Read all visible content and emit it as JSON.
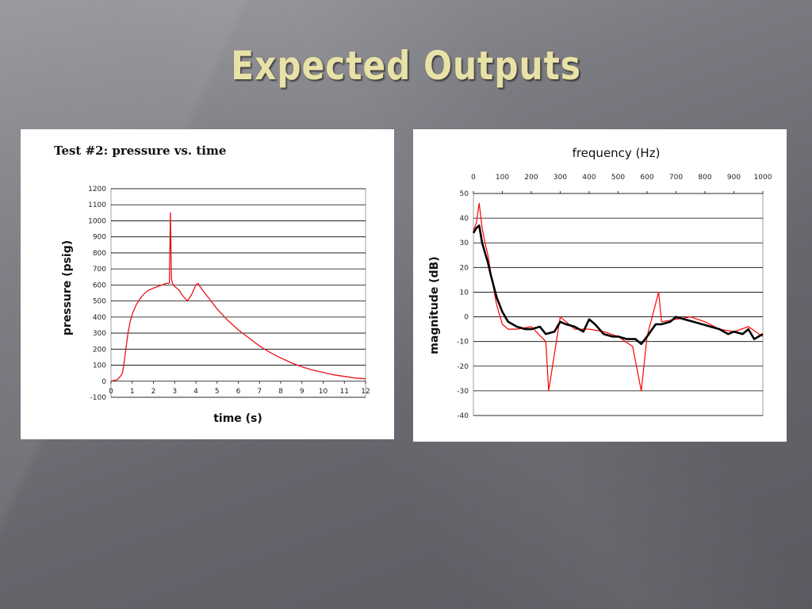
{
  "slide": {
    "title": "Expected Outputs"
  },
  "chart_data": [
    {
      "type": "line",
      "title": "Test #2: pressure vs. time",
      "xlabel": "time (s)",
      "ylabel": "pressure (psig)",
      "xlim": [
        0,
        12
      ],
      "ylim": [
        -100,
        1200
      ],
      "x_ticks": [
        0,
        1,
        2,
        3,
        4,
        5,
        6,
        7,
        8,
        9,
        10,
        11,
        12
      ],
      "y_ticks": [
        -100,
        0,
        100,
        200,
        300,
        400,
        500,
        600,
        700,
        800,
        900,
        1000,
        1100,
        1200
      ],
      "grid": "horizontal",
      "series": [
        {
          "color": "#e8131b",
          "x": [
            0,
            0.3,
            0.5,
            0.55,
            0.6,
            0.7,
            0.8,
            0.9,
            1.0,
            1.2,
            1.4,
            1.6,
            1.8,
            2.0,
            2.2,
            2.4,
            2.6,
            2.75,
            2.8,
            2.85,
            2.9,
            3.0,
            3.2,
            3.4,
            3.6,
            3.8,
            4.0,
            4.1,
            4.3,
            4.6,
            5.0,
            5.5,
            6.0,
            6.5,
            7.0,
            7.5,
            8.0,
            8.5,
            9.0,
            9.5,
            10.0,
            10.5,
            11.0,
            11.5,
            12.0
          ],
          "y": [
            0,
            10,
            40,
            60,
            100,
            200,
            300,
            370,
            420,
            480,
            520,
            550,
            570,
            580,
            590,
            600,
            610,
            610,
            1050,
            640,
            610,
            590,
            570,
            530,
            500,
            540,
            600,
            610,
            570,
            520,
            450,
            380,
            320,
            270,
            220,
            180,
            145,
            115,
            90,
            70,
            55,
            40,
            30,
            20,
            15
          ]
        }
      ]
    },
    {
      "type": "line",
      "title": "frequency (Hz)",
      "xlabel": "",
      "ylabel": "magnitude (dB)",
      "xlim": [
        0,
        1000
      ],
      "ylim": [
        -40,
        50
      ],
      "x_axis_position": "top",
      "x_ticks": [
        0,
        100,
        200,
        300,
        400,
        500,
        600,
        700,
        800,
        900,
        1000
      ],
      "y_ticks": [
        -40,
        -30,
        -20,
        -10,
        0,
        10,
        20,
        30,
        40,
        50
      ],
      "grid": "horizontal",
      "series": [
        {
          "color": "#ff0000",
          "x": [
            0,
            10,
            20,
            30,
            40,
            50,
            60,
            80,
            100,
            120,
            150,
            200,
            250,
            260,
            300,
            350,
            400,
            450,
            500,
            550,
            580,
            600,
            640,
            650,
            700,
            750,
            800,
            850,
            900,
            950,
            1000
          ],
          "y": [
            35,
            38,
            46,
            36,
            30,
            25,
            18,
            5,
            -3,
            -5,
            -5,
            -4,
            -10,
            -30,
            0,
            -5,
            -5,
            -6,
            -8,
            -12,
            -30,
            -8,
            10,
            -2,
            -1,
            0,
            -2,
            -5,
            -6,
            -4,
            -8
          ]
        },
        {
          "color": "#000000",
          "x": [
            0,
            10,
            20,
            30,
            40,
            50,
            60,
            80,
            100,
            120,
            150,
            180,
            200,
            230,
            250,
            280,
            300,
            320,
            350,
            380,
            400,
            420,
            450,
            480,
            500,
            530,
            560,
            580,
            600,
            630,
            650,
            680,
            700,
            730,
            760,
            790,
            820,
            850,
            880,
            900,
            930,
            950,
            970,
            1000
          ],
          "y": [
            34,
            36,
            37,
            30,
            26,
            22,
            17,
            8,
            2,
            -2,
            -4,
            -5,
            -5,
            -4,
            -7,
            -6,
            -2,
            -3,
            -4,
            -6,
            -1,
            -3,
            -7,
            -8,
            -8,
            -9,
            -9,
            -11,
            -8,
            -3,
            -3,
            -2,
            0,
            -1,
            -2,
            -3,
            -4,
            -5,
            -7,
            -6,
            -7,
            -5,
            -9,
            -7
          ]
        }
      ]
    }
  ]
}
